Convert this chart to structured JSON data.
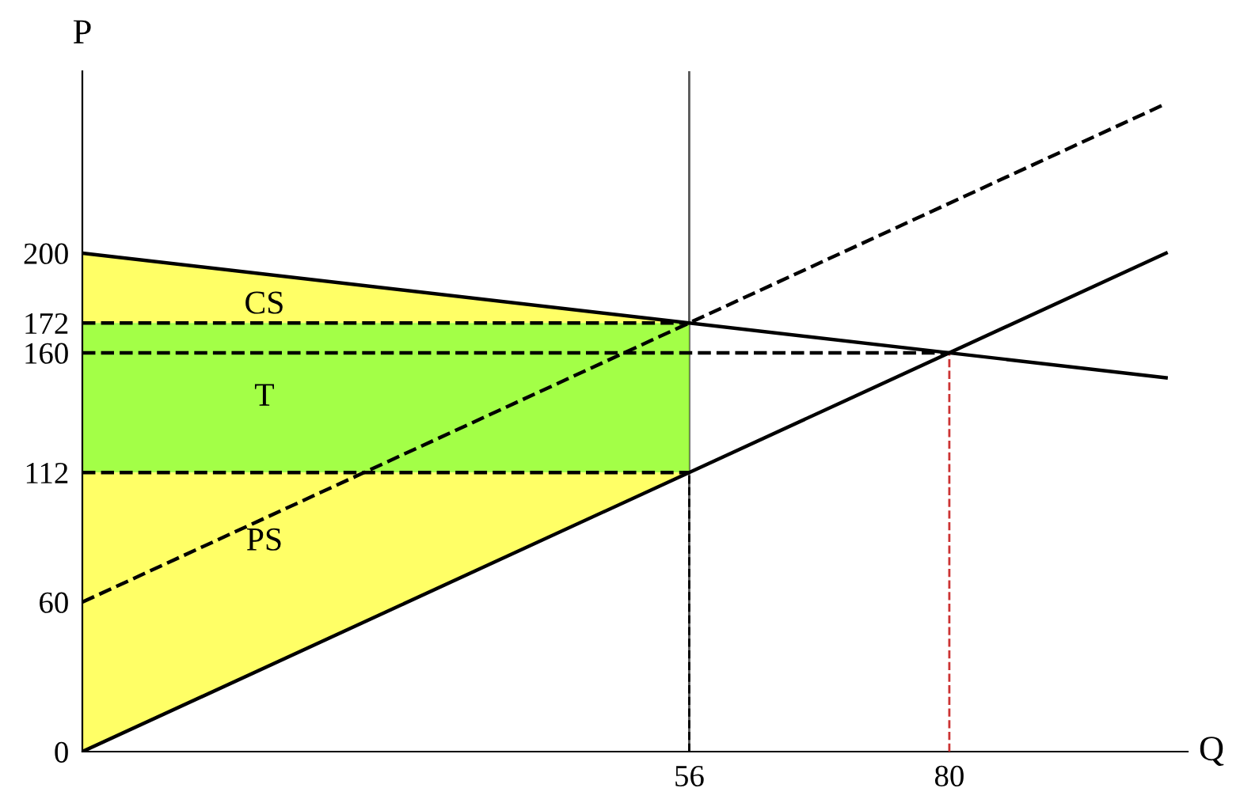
{
  "chart_data": {
    "type": "line",
    "xlabel": "Q",
    "ylabel": "P",
    "xlim": [
      0,
      102
    ],
    "ylim": [
      0,
      273
    ],
    "xticks": [
      56,
      80
    ],
    "yticks": [
      0,
      60,
      112,
      160,
      172,
      200
    ],
    "grid": false,
    "marker": "none",
    "series": [
      {
        "x": [
          0,
          100
        ],
        "values": [
          60,
          260
        ],
        "color": "#000000",
        "line_style": "dashed"
      },
      {
        "x": [
          0,
          56
        ],
        "values": [
          172,
          172
        ],
        "color": "#000000",
        "line_style": "dashed"
      },
      {
        "x": [
          0,
          80
        ],
        "values": [
          160,
          160
        ],
        "color": "#000000",
        "line_style": "dashed"
      },
      {
        "x": [
          0,
          56
        ],
        "values": [
          112,
          112
        ],
        "color": "#000000",
        "line_style": "dashed"
      },
      {
        "x": [
          56,
          56
        ],
        "values": [
          0,
          112
        ],
        "color": "#000000",
        "line_style": "dashed"
      },
      {
        "x": [
          80,
          80
        ],
        "values": [
          0,
          160
        ],
        "color": "#cc3333",
        "line_style": "dashed"
      },
      {
        "x": [
          0,
          100
        ],
        "values": [
          200,
          150
        ],
        "color": "#000000",
        "line_style": "solid"
      },
      {
        "x": [
          0,
          100
        ],
        "values": [
          0,
          200
        ],
        "color": "#000000",
        "line_style": "solid"
      }
    ],
    "ref_lines": [
      {
        "axis": "x",
        "value": 56,
        "color": "#555555",
        "line_style": "solid"
      }
    ],
    "annotations": [
      "CS",
      "T",
      "PS"
    ]
  }
}
